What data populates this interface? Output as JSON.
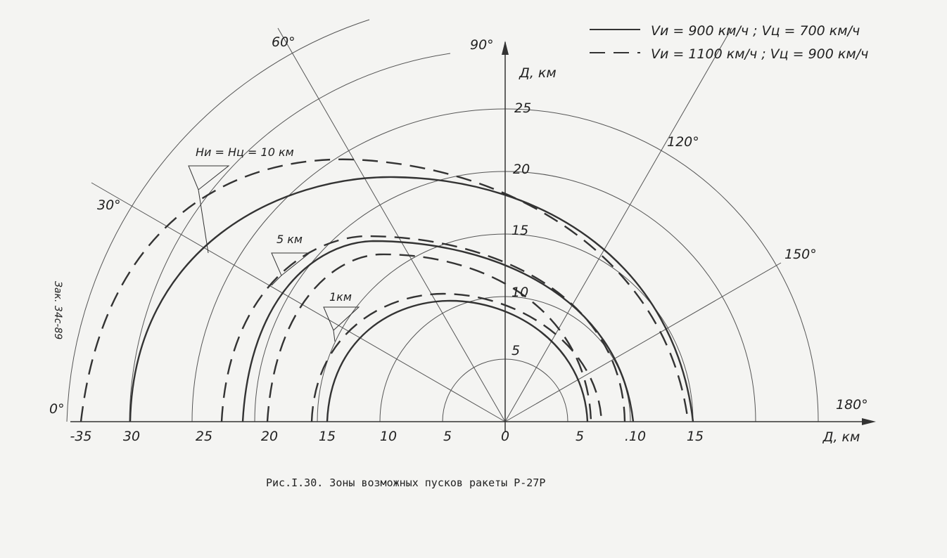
{
  "legend": {
    "items": [
      {
        "label": "Vи = 900 км/ч ;  Vц = 700 км/ч"
      },
      {
        "label": "Vи = 1100 км/ч ;  Vц = 900 км/ч"
      }
    ]
  },
  "angles": [
    "0°",
    "30°",
    "60°",
    "90°",
    "120°",
    "150°",
    "180°"
  ],
  "x_axis": {
    "ticks": [
      "-35",
      "30",
      "25",
      "20",
      "15",
      "10",
      "5",
      "0",
      "5",
      ".10",
      "15"
    ],
    "label": "Д, км"
  },
  "y_axis": {
    "ticks": [
      "5",
      "10",
      "15",
      "20",
      "25"
    ],
    "label": "Д, км"
  },
  "altitudes": [
    "Ни = Нц = 10 км",
    "5 км",
    "1км"
  ],
  "stamp": "Зак. 34с-89",
  "caption": "Рис.I.30. Зоны возможных пусков ракеты Р-27Р"
}
